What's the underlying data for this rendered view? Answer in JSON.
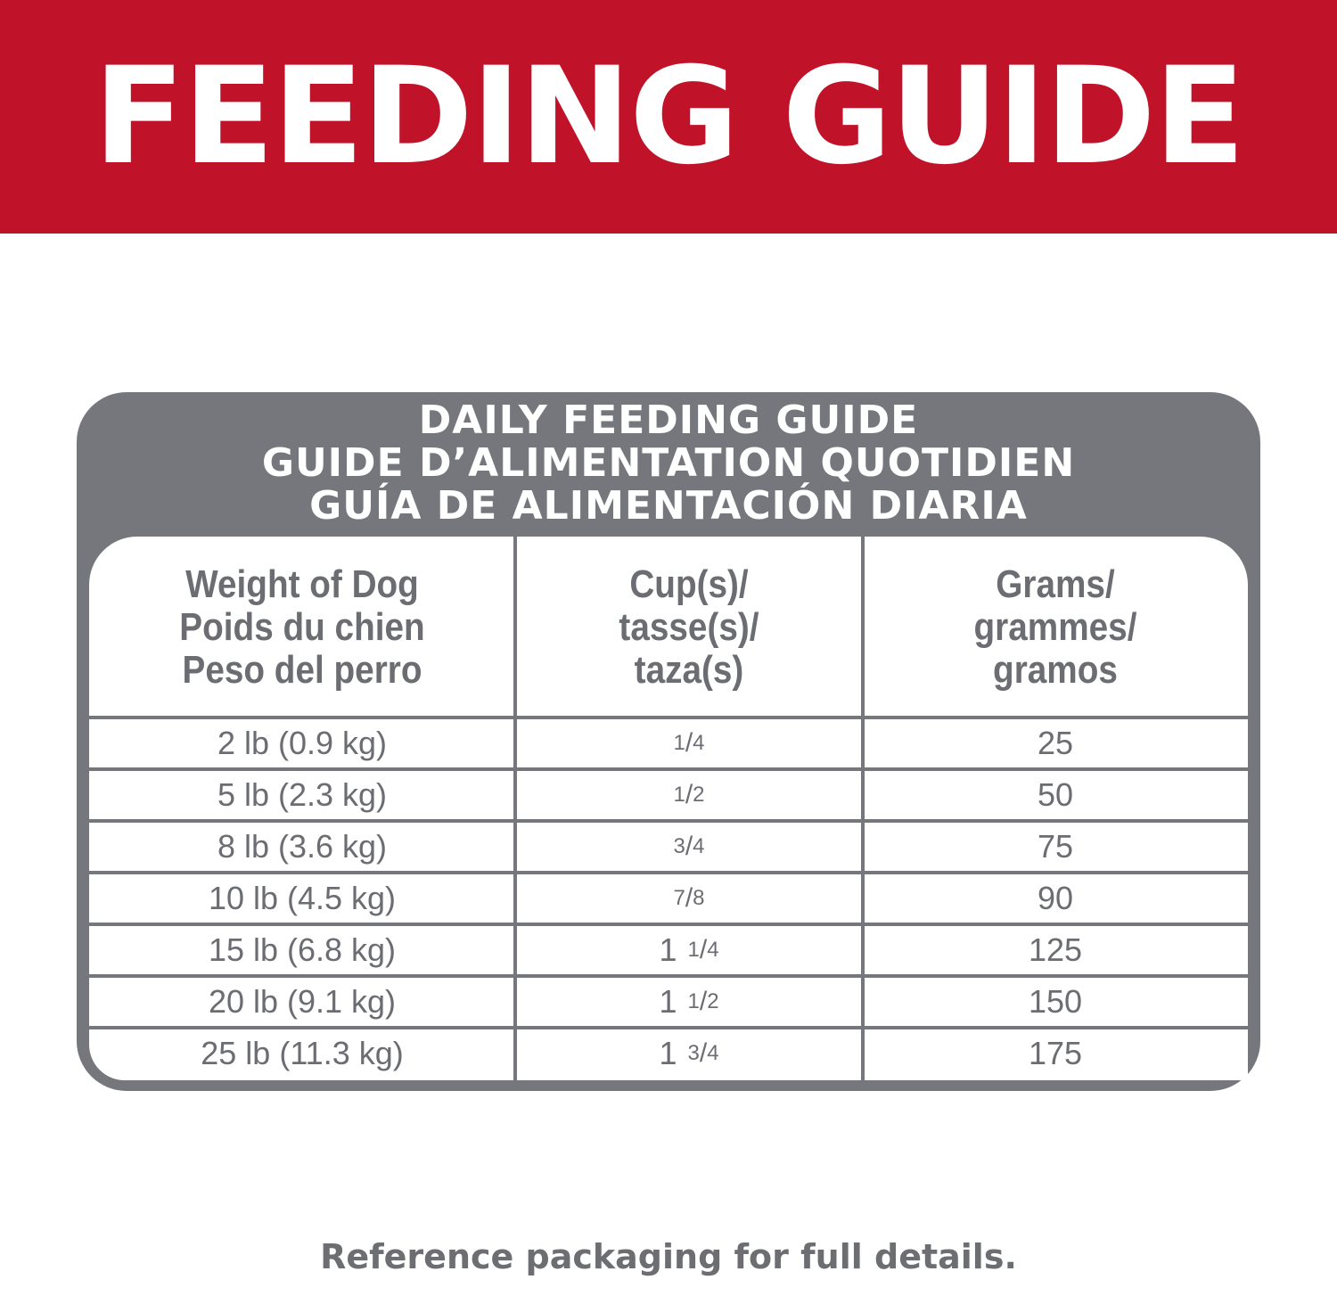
{
  "banner": {
    "title": "FEEDING GUIDE"
  },
  "colors": {
    "banner_red": "#c0132a",
    "table_gray": "#75777c",
    "text_gray": "#6b6d72"
  },
  "table": {
    "titles": [
      "DAILY FEEDING GUIDE",
      "GUIDE D’ALIMENTATION QUOTIDIEN",
      "GUÍA DE ALIMENTACIÓN DIARIA"
    ],
    "headers": [
      [
        "Weight of Dog",
        "Poids du chien",
        "Peso del perro"
      ],
      [
        "Cup(s)/",
        "tasse(s)/",
        "taza(s)"
      ],
      [
        "Grams/",
        "grammes/",
        "gramos"
      ]
    ],
    "rows": [
      {
        "weight": "2 lb (0.9 kg)",
        "cup_whole": "",
        "cup_num": "1",
        "cup_den": "4",
        "grams": "25"
      },
      {
        "weight": "5 lb (2.3 kg)",
        "cup_whole": "",
        "cup_num": "1",
        "cup_den": "2",
        "grams": "50"
      },
      {
        "weight": "8 lb (3.6 kg)",
        "cup_whole": "",
        "cup_num": "3",
        "cup_den": "4",
        "grams": "75"
      },
      {
        "weight": "10 lb (4.5 kg)",
        "cup_whole": "",
        "cup_num": "7",
        "cup_den": "8",
        "grams": "90"
      },
      {
        "weight": "15 lb (6.8 kg)",
        "cup_whole": "1",
        "cup_num": "1",
        "cup_den": "4",
        "grams": "125"
      },
      {
        "weight": "20 lb (9.1 kg)",
        "cup_whole": "1",
        "cup_num": "1",
        "cup_den": "2",
        "grams": "150"
      },
      {
        "weight": "25 lb (11.3 kg)",
        "cup_whole": "1",
        "cup_num": "3",
        "cup_den": "4",
        "grams": "175"
      }
    ]
  },
  "footer": {
    "note": "Reference packaging for full details."
  }
}
